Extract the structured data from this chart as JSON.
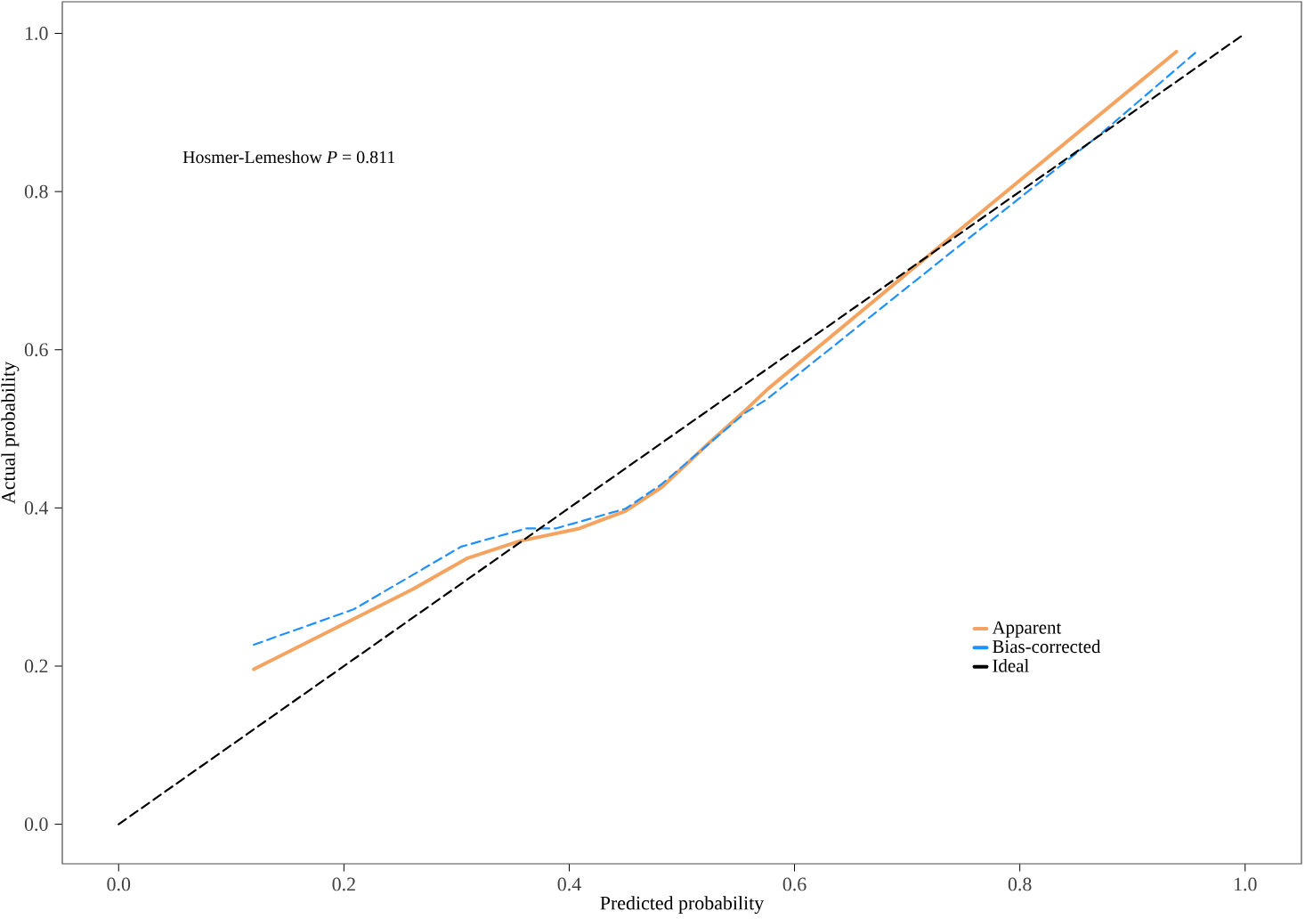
{
  "chart_data": {
    "type": "line",
    "xlabel": "Predicted probability",
    "ylabel": "Actual probability",
    "annotations": [
      "Hosmer-Lemeshow *P* = 0.811"
    ],
    "xlim": [
      -0.05,
      1.05
    ],
    "ylim": [
      -0.05,
      1.04
    ],
    "xticks": [
      {
        "value": 0,
        "label": "0.0"
      },
      {
        "value": 0.2,
        "label": "0.2"
      },
      {
        "value": 0.4,
        "label": "0.4"
      },
      {
        "value": 0.6,
        "label": "0.6"
      },
      {
        "value": 0.8,
        "label": "0.8"
      },
      {
        "value": 1,
        "label": "1.0"
      }
    ],
    "yticks": [
      {
        "value": 0,
        "label": "0.0"
      },
      {
        "value": 0.2,
        "label": "0.2"
      },
      {
        "value": 0.4,
        "label": "0.4"
      },
      {
        "value": 0.6,
        "label": "0.6"
      },
      {
        "value": 0.8,
        "label": "0.8"
      },
      {
        "value": 1,
        "label": "1.0"
      }
    ],
    "grid": false,
    "legend": "bottom right",
    "marker": "none",
    "series": [
      {
        "name": "Apparent",
        "color": "#f4a460",
        "line_style": "solid",
        "x": [
          0.12,
          0.261,
          0.309,
          0.356,
          0.409,
          0.45,
          0.482,
          0.524,
          0.556,
          0.576,
          0.724,
          0.939
        ],
        "values": [
          0.196,
          0.297,
          0.336,
          0.358,
          0.374,
          0.396,
          0.426,
          0.482,
          0.523,
          0.55,
          0.725,
          0.977
        ]
      },
      {
        "name": "Bias-corrected",
        "color": "#1e90ff",
        "line_style": "dashed",
        "x": [
          0.12,
          0.209,
          0.304,
          0.362,
          0.388,
          0.45,
          0.482,
          0.556,
          0.576,
          0.745,
          0.871,
          0.957
        ],
        "values": [
          0.227,
          0.272,
          0.351,
          0.374,
          0.374,
          0.399,
          0.43,
          0.52,
          0.538,
          0.73,
          0.872,
          0.977
        ]
      },
      {
        "name": "Ideal",
        "color": "#000000",
        "line_style": "dashed",
        "x": [
          0,
          1
        ],
        "values": [
          0,
          1
        ]
      }
    ]
  }
}
